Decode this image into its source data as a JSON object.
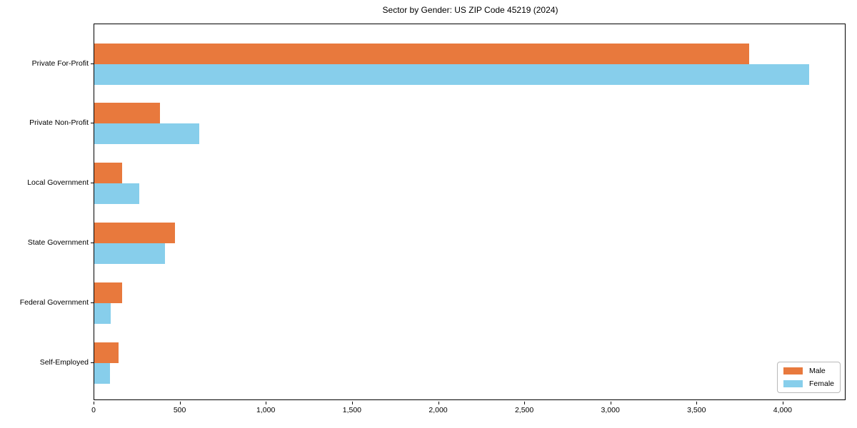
{
  "chart_data": {
    "type": "bar",
    "orientation": "horizontal",
    "title": "Sector by Gender: US ZIP Code 45219 (2024)",
    "categories": [
      "Private For-Profit",
      "Private Non-Profit",
      "Local Government",
      "State Government",
      "Federal Government",
      "Self-Employed"
    ],
    "series": [
      {
        "name": "Male",
        "color": "#E8793D",
        "values": [
          3800,
          380,
          160,
          470,
          160,
          140
        ]
      },
      {
        "name": "Female",
        "color": "#87CEEB",
        "values": [
          4150,
          610,
          260,
          410,
          95,
          90
        ]
      }
    ],
    "xlabel": "",
    "ylabel": "",
    "xlim": [
      0,
      4365
    ],
    "xticks": [
      0,
      500,
      1000,
      1500,
      2000,
      2500,
      3000,
      3500,
      4000
    ],
    "xtick_labels": [
      "0",
      "500",
      "1,000",
      "1,500",
      "2,000",
      "2,500",
      "3,000",
      "3,500",
      "4,000"
    ],
    "legend": {
      "position": "lower right",
      "entries": [
        "Male",
        "Female"
      ]
    },
    "grid": false,
    "background_color": "#ffffff",
    "axis_color": "#000000"
  }
}
